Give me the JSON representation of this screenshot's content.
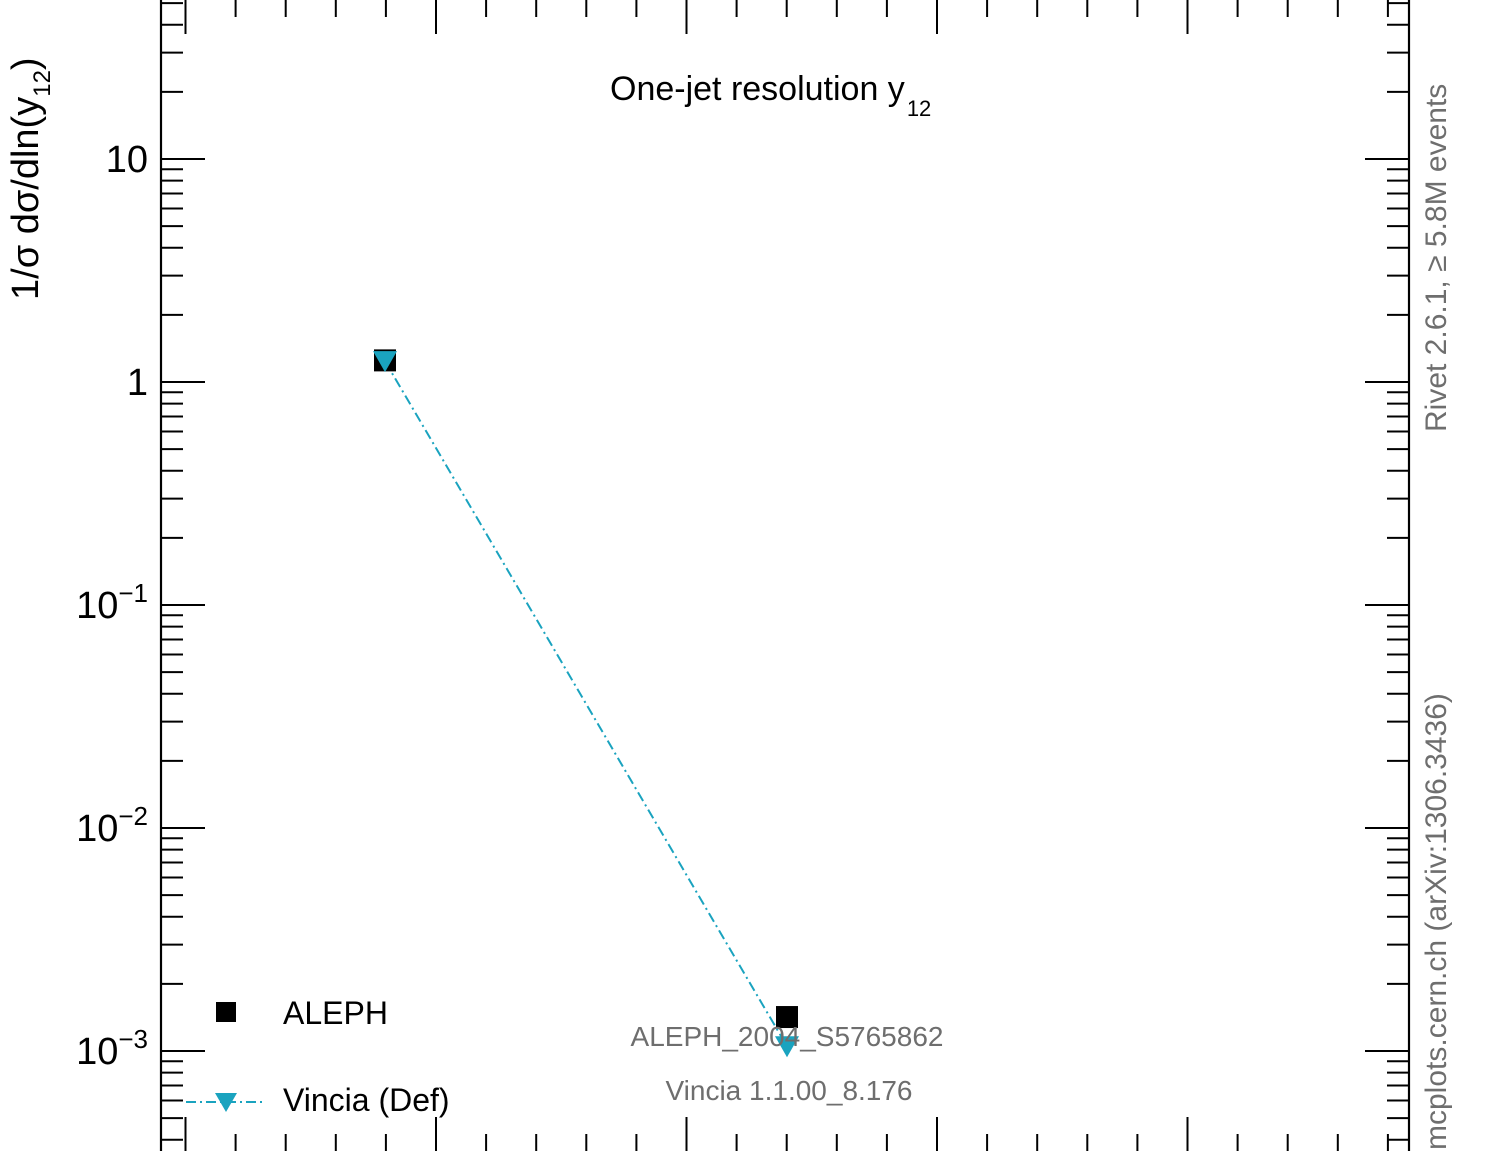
{
  "chart_data": {
    "type": "scatter",
    "title": "One-jet resolution y",
    "title_sub": "12",
    "ylabel": "1/σ  dσ/dln(y",
    "ylabel_sub": "12",
    "ylabel_close": ")",
    "yscale": "log",
    "ylim": [
      0.0004,
      50
    ],
    "y_ticks": [
      {
        "value": 0.001,
        "base": "10",
        "exp": "−3"
      },
      {
        "value": 0.01,
        "base": "10",
        "exp": "−2"
      },
      {
        "value": 0.1,
        "base": "10",
        "exp": "−1"
      },
      {
        "value": 1,
        "base": "1",
        "exp": ""
      },
      {
        "value": 10,
        "base": "10",
        "exp": ""
      }
    ],
    "series": [
      {
        "name": "ALEPH",
        "marker": "square",
        "color": "#000000",
        "points": [
          {
            "x": 1,
            "y": 1.25
          },
          {
            "x": 2,
            "y": 0.00142
          }
        ]
      },
      {
        "name": "Vincia (Def)",
        "marker": "triangle-down",
        "line": "dash-dot",
        "color": "#1aa3bf",
        "points": [
          {
            "x": 1,
            "y": 1.24
          },
          {
            "x": 2,
            "y": 0.00105
          }
        ]
      }
    ],
    "annotations": {
      "analysis": "ALEPH_2004_S5765862",
      "generator": "Vincia 1.1.00_8.176",
      "rivet": "Rivet 2.6.1, ≥ 5.8M events",
      "source": "mcplots.cern.ch (arXiv:1306.3436)"
    },
    "legend_position": "bottom-left"
  }
}
